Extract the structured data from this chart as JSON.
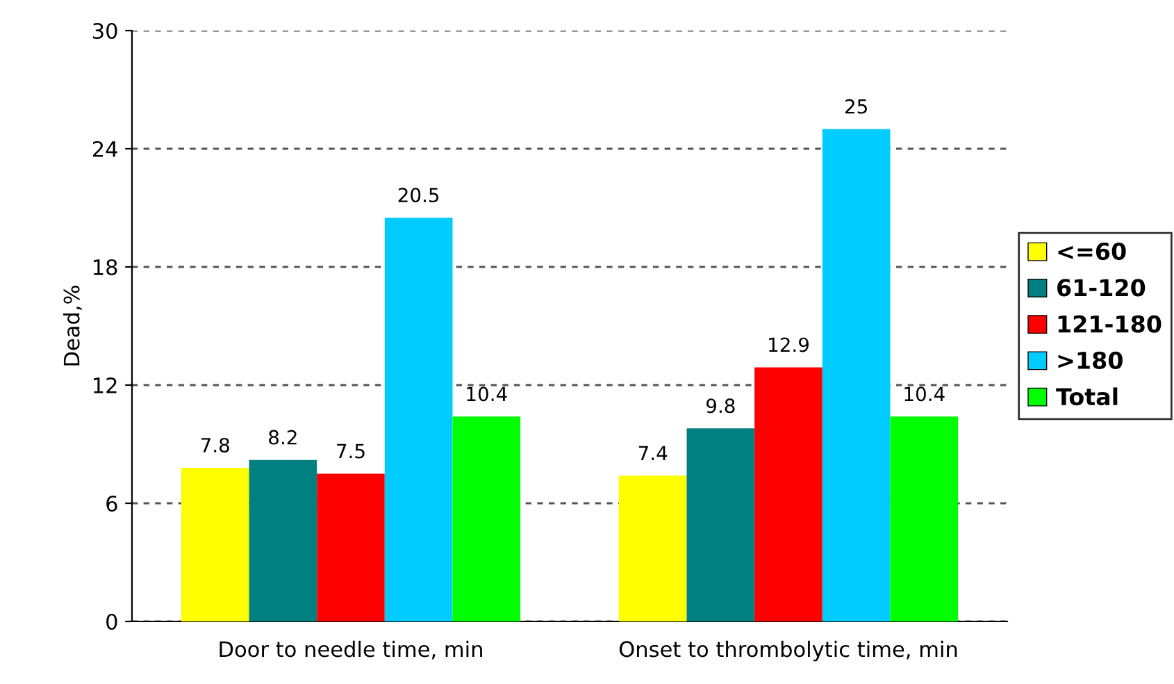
{
  "chart_data": {
    "type": "bar",
    "ylabel": "Dead,%",
    "categories": [
      "Door to needle time, min",
      "Onset to thrombolytic time, min"
    ],
    "series": [
      {
        "name": "<=60",
        "color": "#ffff00",
        "values": [
          7.8,
          7.4
        ]
      },
      {
        "name": "61-120",
        "color": "#008080",
        "values": [
          8.2,
          9.8
        ]
      },
      {
        "name": "121-180",
        "color": "#ff0000",
        "values": [
          7.5,
          12.9
        ]
      },
      {
        "name": ">180",
        "color": "#00ccff",
        "values": [
          20.5,
          25
        ]
      },
      {
        "name": "Total",
        "color": "#00ff00",
        "values": [
          10.4,
          10.4
        ]
      }
    ],
    "ylim": [
      0,
      30
    ],
    "yticks": [
      0,
      6,
      12,
      18,
      24,
      30
    ],
    "grid": "y",
    "line_style": "dashed",
    "legend": "right",
    "data_labels": true
  }
}
